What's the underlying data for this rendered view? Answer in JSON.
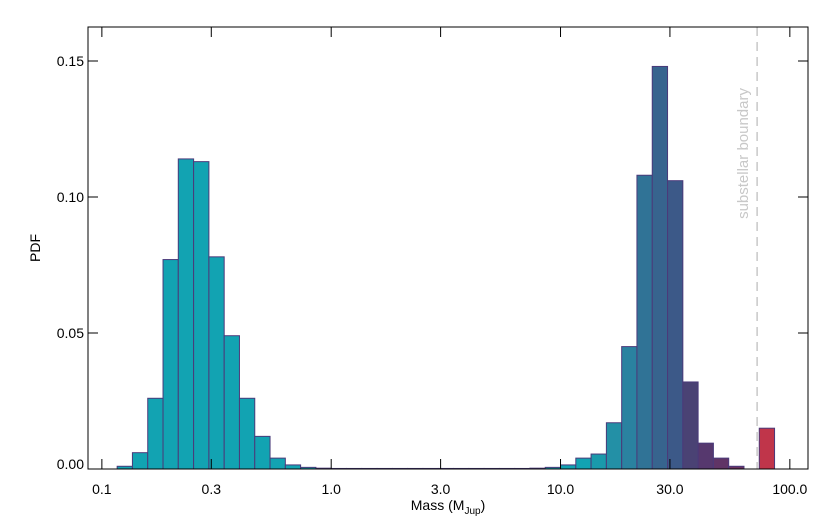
{
  "chart_data": {
    "type": "histogram",
    "x_label": "Mass (M",
    "x_label_sub": "Jup",
    "x_label_end": ")",
    "y_label": "PDF",
    "x_log": true,
    "bins": [
      0.1166,
      0.1359,
      0.1585,
      0.1848,
      0.2154,
      0.2512,
      0.2929,
      0.3415,
      0.3981,
      0.4642,
      0.5412,
      0.631,
      0.7356,
      0.8577,
      1,
      1.166,
      1.359,
      1.585,
      1.848,
      2.154,
      2.512,
      2.929,
      3.415,
      3.981,
      4.642,
      5.412,
      6.31,
      7.356,
      8.577,
      10,
      11.66,
      13.59,
      15.85,
      18.48,
      21.54,
      25.12,
      29.29,
      34.15,
      39.81,
      46.42,
      54.12,
      63.1,
      73.56,
      85.77
    ],
    "values": [
      0.001,
      0.006,
      0.026,
      0.077,
      0.114,
      0.113,
      0.078,
      0.049,
      0.026,
      0.012,
      0.004,
      0.0015,
      0.0006,
      0.0003,
      0.0002,
      0.0002,
      0.0002,
      0.0002,
      0.0002,
      0.0002,
      0.0002,
      0.0002,
      0.0002,
      0.0002,
      0.0002,
      0.0002,
      0.0002,
      0.0003,
      0.0006,
      0.0015,
      0.004,
      0.0055,
      0.017,
      0.045,
      0.108,
      0.148,
      0.106,
      0.032,
      0.0095,
      0.004,
      0.001,
      0,
      0.015
    ],
    "colors": [
      "#12a3b2",
      "#12a3b2",
      "#12a3b2",
      "#12a3b2",
      "#12a3b2",
      "#12a3b2",
      "#12a3b2",
      "#12a3b2",
      "#12a3b2",
      "#12a3b2",
      "#12a3b2",
      "#12a3b2",
      "#12a3b2",
      "#12a3b2",
      "#12a3b2",
      "#12a3b2",
      "#12a3b2",
      "#12a3b2",
      "#12a3b2",
      "#12a3b2",
      "#12a3b2",
      "#12a3b2",
      "#12a3b2",
      "#12a3b2",
      "#12a3b2",
      "#12a3b2",
      "#12a3b2",
      "#12a3b2",
      "#12a3b2",
      "#12a3b2",
      "#12a3b2",
      "#1a9aab",
      "#2390a6",
      "#2a82a0",
      "#307396",
      "#37648e",
      "#3c5988",
      "#4a4274",
      "#56386e",
      "#603466",
      "#6a3262",
      "#75305c",
      "#c0354a"
    ],
    "edge_color": "#4a3a7a",
    "xlim": [
      0.087,
      120
    ],
    "ylim": [
      0,
      0.1625
    ],
    "xticks": [
      0.1,
      0.3,
      {
        "value": 1,
        "label": "1.0"
      },
      {
        "value": 3,
        "label": "3.0"
      },
      {
        "value": 10,
        "label": "10.0"
      },
      {
        "value": 30,
        "label": "30.0"
      },
      {
        "value": 100,
        "label": "100.0"
      }
    ],
    "yticks": [
      {
        "value": 0,
        "label": "0.00"
      },
      0.05,
      {
        "value": 0.1,
        "label": "0.10"
      },
      0.15
    ],
    "boundary": {
      "value": 72,
      "label": "substellar boundary",
      "color": "#c8c8c8"
    }
  }
}
